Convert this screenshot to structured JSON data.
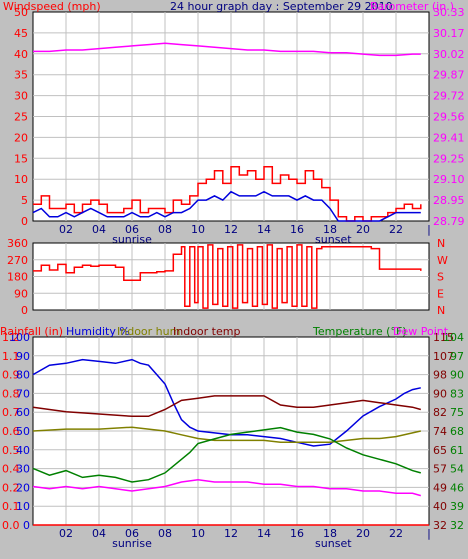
{
  "colors": {
    "background": "#c0c0c0",
    "plot_bg": "#ffffff",
    "grid": "#c0c0c0",
    "windspeed_gust": "#ff0000",
    "windspeed_avg": "#0000dd",
    "barometer": "#ff00ff",
    "direction": "#ff0000",
    "humidity": "#0000dd",
    "indoor_hum": "#808000",
    "indoor_temp": "#800000",
    "temperature": "#008000",
    "dew_point": "#ff00ff",
    "rainfall": "#ff0000",
    "title_text": "#000080"
  },
  "chart_data": [
    {
      "type": "line",
      "title": "24 hour graph day : September 29 2010",
      "y_left_label": "Windspeed (mph)",
      "y_right_label": "Barometer (in.)",
      "y_left_ticks": [
        "50",
        "45",
        "40",
        "35",
        "30",
        "25",
        "20",
        "15",
        "10",
        "5",
        "0"
      ],
      "y_right_ticks": [
        "30.33",
        "30.17",
        "30.02",
        "29.87",
        "29.72",
        "29.56",
        "29.41",
        "29.25",
        "29.10",
        "28.95",
        "28.79"
      ],
      "ylim_left": [
        0,
        50
      ],
      "ylim_right": [
        28.79,
        30.33
      ],
      "xlim": [
        0,
        24
      ],
      "grid": true,
      "x_ticks": [
        "02",
        "04",
        "06",
        "08",
        "10",
        "12",
        "14",
        "16",
        "18",
        "20",
        "22",
        "|"
      ],
      "x_markers": [
        {
          "label": "sunrise",
          "x": 6.0
        },
        {
          "label": "sunset",
          "x": 18.2
        }
      ],
      "series": [
        {
          "name": "Windspeed gust",
          "axis": "left",
          "x": [
            0,
            0.5,
            1,
            1.5,
            2,
            2.5,
            3,
            3.5,
            4,
            4.5,
            5,
            5.5,
            6,
            6.5,
            7,
            7.5,
            8,
            8.5,
            9,
            9.5,
            10,
            10.5,
            11,
            11.5,
            12,
            12.5,
            13,
            13.5,
            14,
            14.5,
            15,
            15.5,
            16,
            16.5,
            17,
            17.5,
            18,
            18.5,
            19,
            19.5,
            20,
            20.5,
            21,
            21.5,
            22,
            22.5,
            23,
            23.5
          ],
          "values": [
            4,
            6,
            3,
            3,
            4,
            2,
            4,
            5,
            4,
            2,
            2,
            3,
            5,
            2,
            3,
            3,
            2,
            5,
            4,
            6,
            9,
            10,
            12,
            9,
            13,
            11,
            12,
            10,
            13,
            9,
            11,
            10,
            9,
            12,
            10,
            8,
            5,
            1,
            0,
            1,
            0,
            1,
            1,
            2,
            3,
            4,
            3,
            4
          ]
        },
        {
          "name": "Windspeed average",
          "axis": "left",
          "x": [
            0,
            0.5,
            1,
            1.5,
            2,
            2.5,
            3,
            3.5,
            4,
            4.5,
            5,
            5.5,
            6,
            6.5,
            7,
            7.5,
            8,
            8.5,
            9,
            9.5,
            10,
            10.5,
            11,
            11.5,
            12,
            12.5,
            13,
            13.5,
            14,
            14.5,
            15,
            15.5,
            16,
            16.5,
            17,
            17.5,
            18,
            18.5,
            19,
            19.5,
            20,
            20.5,
            21,
            21.5,
            22,
            22.5,
            23,
            23.5
          ],
          "values": [
            2,
            3,
            1,
            1,
            2,
            1,
            2,
            3,
            2,
            1,
            1,
            1,
            2,
            1,
            1,
            2,
            1,
            2,
            2,
            3,
            5,
            5,
            6,
            5,
            7,
            6,
            6,
            6,
            7,
            6,
            6,
            6,
            5,
            6,
            5,
            5,
            3,
            0,
            0,
            0,
            0,
            0,
            0,
            1,
            2,
            2,
            2,
            2
          ]
        },
        {
          "name": "Barometer",
          "axis": "right",
          "x": [
            0,
            1,
            2,
            3,
            4,
            5,
            6,
            7,
            8,
            9,
            10,
            11,
            12,
            13,
            14,
            15,
            16,
            17,
            18,
            19,
            20,
            21,
            22,
            23,
            23.5
          ],
          "values": [
            30.04,
            30.04,
            30.05,
            30.05,
            30.06,
            30.07,
            30.08,
            30.09,
            30.1,
            30.09,
            30.08,
            30.07,
            30.06,
            30.05,
            30.05,
            30.04,
            30.04,
            30.04,
            30.03,
            30.03,
            30.02,
            30.01,
            30.01,
            30.02,
            30.02
          ]
        }
      ]
    },
    {
      "type": "line",
      "y_left_ticks": [
        "360",
        "270",
        "180",
        "90",
        "0"
      ],
      "y_right_ticks": [
        "N",
        "W",
        "S",
        "E",
        "N"
      ],
      "ylim_left": [
        0,
        360
      ],
      "xlim": [
        0,
        24
      ],
      "grid": true,
      "series": [
        {
          "name": "Wind direction",
          "x": [
            0,
            0.5,
            1,
            1.5,
            2,
            2.5,
            3,
            3.5,
            4,
            4.5,
            5,
            5.5,
            6,
            6.5,
            7,
            7.5,
            8,
            8.5,
            9,
            9.2,
            9.5,
            9.8,
            10,
            10.3,
            10.6,
            10.9,
            11.2,
            11.5,
            11.8,
            12.1,
            12.4,
            12.7,
            13,
            13.3,
            13.6,
            13.9,
            14.2,
            14.5,
            14.8,
            15.1,
            15.4,
            15.7,
            16,
            16.3,
            16.6,
            16.9,
            17.2,
            17.5,
            18,
            19,
            20,
            20.5,
            21,
            22,
            23,
            23.5
          ],
          "values": [
            210,
            240,
            215,
            245,
            200,
            230,
            240,
            235,
            240,
            240,
            230,
            160,
            160,
            200,
            200,
            205,
            210,
            300,
            340,
            20,
            340,
            40,
            340,
            10,
            350,
            30,
            330,
            20,
            340,
            10,
            350,
            40,
            330,
            20,
            340,
            30,
            350,
            10,
            330,
            40,
            340,
            20,
            350,
            20,
            340,
            10,
            330,
            340,
            340,
            340,
            340,
            330,
            220,
            220,
            220,
            210
          ]
        }
      ]
    },
    {
      "type": "line",
      "y_left_label": "Rainfall (in)",
      "y_left2_label": "Humidity %",
      "y_left3_label": "Indoor hum",
      "y_left4_label": "Indoor temp",
      "y_right_label": "Temperature (°F)",
      "y_right2_label": "Dew Point",
      "y_rain_ticks": [
        "1.2",
        "1.1",
        "0.9",
        "0.8",
        "0.7",
        "0.6",
        "0.5",
        "0.4",
        "0.2",
        "0.1",
        "0.0"
      ],
      "y_hum_ticks": [
        "100",
        "90",
        "80",
        "70",
        "60",
        "50",
        "40",
        "30",
        "20",
        "10",
        "0"
      ],
      "y_temp_ticks": [
        "115",
        "107",
        "98",
        "90",
        "82",
        "74",
        "65",
        "57",
        "49",
        "40",
        "32"
      ],
      "y_temp2_ticks": [
        "104",
        "97",
        "90",
        "83",
        "75",
        "68",
        "61",
        "54",
        "46",
        "39",
        "32"
      ],
      "ylim_humidity": [
        0,
        100
      ],
      "ylim_temperature": [
        32,
        115
      ],
      "ylim_rainfall": [
        0.0,
        1.2
      ],
      "xlim": [
        0,
        24
      ],
      "grid": true,
      "x_ticks": [
        "02",
        "04",
        "06",
        "08",
        "10",
        "12",
        "14",
        "16",
        "18",
        "20",
        "22",
        "|"
      ],
      "x_markers": [
        {
          "label": "sunrise",
          "x": 6.0
        },
        {
          "label": "sunset",
          "x": 18.2
        }
      ],
      "series": [
        {
          "name": "Humidity %",
          "axis": "humidity",
          "x": [
            0,
            1,
            2,
            3,
            4,
            5,
            6,
            6.5,
            7,
            7.5,
            8,
            8.5,
            9,
            9.5,
            10,
            11,
            12,
            13,
            14,
            15,
            16,
            17,
            18,
            19,
            20,
            21,
            22,
            22.5,
            23,
            23.5
          ],
          "values": [
            80,
            85,
            86,
            88,
            87,
            86,
            88,
            86,
            85,
            80,
            75,
            65,
            56,
            52,
            50,
            49,
            48,
            48,
            47,
            46,
            44,
            42,
            43,
            50,
            58,
            63,
            67,
            70,
            72,
            73
          ]
        },
        {
          "name": "Indoor hum",
          "axis": "humidity",
          "x": [
            0,
            2,
            4,
            6,
            7,
            8,
            9,
            10,
            11,
            12,
            13,
            14,
            15,
            16,
            17,
            18,
            19,
            20,
            21,
            22,
            23,
            23.5
          ],
          "values": [
            50,
            51,
            51,
            52,
            51,
            50,
            48,
            46,
            45,
            45,
            45,
            45,
            44,
            44,
            44,
            44,
            45,
            46,
            46,
            47,
            49,
            50
          ]
        },
        {
          "name": "Indoor temp",
          "axis": "temperature",
          "x": [
            0,
            2,
            4,
            6,
            7,
            8,
            9,
            10,
            11,
            12,
            13,
            14,
            15,
            16,
            17,
            18,
            19,
            20,
            21,
            22,
            23,
            23.5
          ],
          "values": [
            84,
            82,
            81,
            80,
            80,
            83,
            87,
            88,
            89,
            89,
            89,
            89,
            85,
            84,
            84,
            85,
            86,
            87,
            86,
            85,
            84,
            83
          ]
        },
        {
          "name": "Temperature (°F)",
          "axis": "temperature",
          "x": [
            0,
            1,
            2,
            3,
            4,
            5,
            6,
            7,
            8,
            8.5,
            9,
            9.5,
            10,
            11,
            12,
            13,
            14,
            15,
            16,
            17,
            18,
            19,
            20,
            21,
            22,
            23,
            23.5
          ],
          "values": [
            57,
            54,
            56,
            53,
            54,
            53,
            51,
            52,
            55,
            58,
            61,
            64,
            68,
            70,
            72,
            73,
            74,
            75,
            73,
            72,
            70,
            66,
            63,
            61,
            59,
            56,
            55
          ]
        },
        {
          "name": "Dew Point",
          "axis": "temperature",
          "x": [
            0,
            1,
            2,
            3,
            4,
            5,
            6,
            7,
            8,
            9,
            10,
            11,
            12,
            13,
            14,
            15,
            16,
            17,
            18,
            19,
            20,
            21,
            22,
            23,
            23.5
          ],
          "values": [
            49,
            48,
            49,
            48,
            49,
            48,
            47,
            48,
            49,
            51,
            52,
            51,
            51,
            51,
            50,
            50,
            49,
            49,
            48,
            48,
            47,
            47,
            46,
            46,
            45
          ]
        },
        {
          "name": "Rainfall (in)",
          "axis": "rainfall",
          "x": [
            0,
            24
          ],
          "values": [
            0.0,
            0.0
          ]
        }
      ]
    }
  ]
}
